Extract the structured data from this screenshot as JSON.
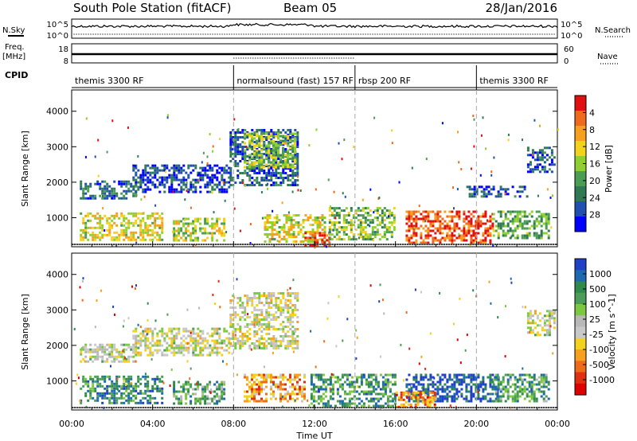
{
  "header": {
    "title": "South Pole Station (fitACF)",
    "beam": "Beam 05",
    "date": "28/Jan/2016"
  },
  "strips": {
    "nsky_label": "N.Sky",
    "nsky_ticks": [
      "10^5",
      "10^0"
    ],
    "nsearch_label": "N.Search",
    "nsearch_ticks": [
      "10^5",
      "10^0"
    ],
    "freq_label_1": "Freq.",
    "freq_label_2": "[MHz]",
    "freq_ticks": [
      "18",
      "8"
    ],
    "nave_label": "Nave",
    "nave_ticks": [
      "60",
      "0"
    ],
    "cpid_label": "CPID"
  },
  "cpid_segments": [
    {
      "start_hour": 0,
      "label": "themis 3300 RF"
    },
    {
      "start_hour": 8,
      "label": "normalsound (fast) 157 RF"
    },
    {
      "start_hour": 14,
      "label": "rbsp 200 RF"
    },
    {
      "start_hour": 20,
      "label": "themis 3300 RF"
    }
  ],
  "chart_data": [
    {
      "type": "heatmap",
      "panel": "power",
      "ylabel": "Slant Range [km]",
      "yticks": [
        "1000",
        "2000",
        "3000",
        "4000"
      ],
      "ylim": [
        180,
        4600
      ],
      "xlim": [
        0,
        24
      ],
      "colorbar_label": "Power [dB]",
      "colorbar_ticks": [
        "4",
        "8",
        "12",
        "16",
        "20",
        "24",
        "28"
      ],
      "colors": [
        "#0000ff",
        "#2050b0",
        "#2f7a54",
        "#4a9d52",
        "#8fcf2f",
        "#f2d21a",
        "#f7a01f",
        "#ef6a1a",
        "#e01010"
      ],
      "regions": [
        {
          "t": [
            0.4,
            3.2
          ],
          "r": [
            1550,
            2050
          ],
          "level": 0.25
        },
        {
          "t": [
            3.0,
            7.8
          ],
          "r": [
            1700,
            2500
          ],
          "level": 0.15
        },
        {
          "t": [
            7.8,
            11.2
          ],
          "r": [
            1900,
            3500
          ],
          "level": 0.2
        },
        {
          "t": [
            8.5,
            11.0
          ],
          "r": [
            2400,
            3400
          ],
          "level": 0.5
        },
        {
          "t": [
            0.4,
            4.5
          ],
          "r": [
            350,
            1150
          ],
          "level": 0.6
        },
        {
          "t": [
            5.0,
            7.5
          ],
          "r": [
            350,
            1000
          ],
          "level": 0.55
        },
        {
          "t": [
            9.5,
            12.5
          ],
          "r": [
            300,
            1100
          ],
          "level": 0.6
        },
        {
          "t": [
            11.5,
            12.7
          ],
          "r": [
            250,
            600
          ],
          "level": 0.9
        },
        {
          "t": [
            12.7,
            16.0
          ],
          "r": [
            400,
            1300
          ],
          "level": 0.45
        },
        {
          "t": [
            16.5,
            20.8
          ],
          "r": [
            300,
            1200
          ],
          "level": 0.88
        },
        {
          "t": [
            20.8,
            23.6
          ],
          "r": [
            400,
            1200
          ],
          "level": 0.4
        },
        {
          "t": [
            19.5,
            22.5
          ],
          "r": [
            1600,
            1900
          ],
          "level": 0.2
        },
        {
          "t": [
            22.5,
            23.9
          ],
          "r": [
            2300,
            3000
          ],
          "level": 0.2
        }
      ]
    },
    {
      "type": "heatmap",
      "panel": "velocity",
      "ylabel": "Slant Range [km]",
      "yticks": [
        "1000",
        "2000",
        "3000",
        "4000"
      ],
      "ylim": [
        180,
        4600
      ],
      "xlim": [
        0,
        24
      ],
      "xlabel": "Time UT",
      "xticks": [
        "00:00",
        "04:00",
        "08:00",
        "12:00",
        "16:00",
        "20:00",
        "00:00"
      ],
      "colorbar_label": "Velocity [m s^-1]",
      "colorbar_ticks": [
        "1000",
        "500",
        "100",
        "25",
        "-25",
        "-100",
        "-500",
        "-1000"
      ],
      "colors": [
        "#2040c8",
        "#1e6ab0",
        "#2f8a4c",
        "#4c9d58",
        "#7cc840",
        "#b8b8b8",
        "#c8c8c8",
        "#f2d21a",
        "#f7a01f",
        "#ef6a1a",
        "#e03010",
        "#e00000"
      ],
      "regions": [
        {
          "t": [
            0.4,
            3.2
          ],
          "r": [
            1550,
            2050
          ],
          "level": 0.48
        },
        {
          "t": [
            3.0,
            7.8
          ],
          "r": [
            1700,
            2500
          ],
          "level": 0.5
        },
        {
          "t": [
            7.8,
            11.2
          ],
          "r": [
            1900,
            3500
          ],
          "level": 0.52
        },
        {
          "t": [
            0.4,
            4.5
          ],
          "r": [
            350,
            1150
          ],
          "level": 0.22
        },
        {
          "t": [
            5.0,
            7.5
          ],
          "r": [
            350,
            1000
          ],
          "level": 0.3
        },
        {
          "t": [
            8.5,
            11.5
          ],
          "r": [
            400,
            1200
          ],
          "level": 0.72
        },
        {
          "t": [
            11.8,
            16.0
          ],
          "r": [
            300,
            1200
          ],
          "level": 0.25
        },
        {
          "t": [
            16.5,
            21.0
          ],
          "r": [
            400,
            1200
          ],
          "level": 0.08
        },
        {
          "t": [
            16.0,
            18.0
          ],
          "r": [
            250,
            700
          ],
          "level": 0.75
        },
        {
          "t": [
            20.8,
            23.6
          ],
          "r": [
            400,
            1200
          ],
          "level": 0.28
        },
        {
          "t": [
            22.5,
            23.9
          ],
          "r": [
            2300,
            3000
          ],
          "level": 0.5
        }
      ]
    }
  ]
}
